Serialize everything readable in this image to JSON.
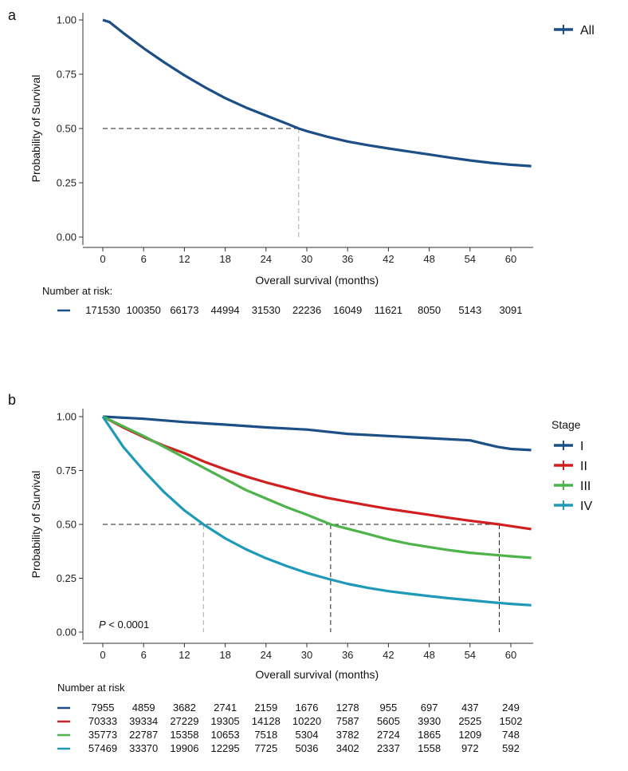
{
  "chart_data": [
    {
      "panel_label": "a",
      "type": "line",
      "subtype": "kaplan-meier",
      "title": "",
      "xlabel": "Overall survival (months)",
      "ylabel": "Probability of Survival",
      "xlim": [
        0,
        63
      ],
      "ylim": [
        0,
        1
      ],
      "xticks": [
        0,
        6,
        12,
        18,
        24,
        30,
        36,
        42,
        48,
        54,
        60
      ],
      "yticks": [
        "0.00",
        "0.25",
        "0.50",
        "0.75",
        "1.00"
      ],
      "grid": false,
      "legend": {
        "title": "",
        "position": "top-right"
      },
      "median_reference": {
        "y": 0.5,
        "x": [
          28.8
        ]
      },
      "series": [
        {
          "name": "All",
          "color": "#1b4f86",
          "x": [
            0,
            1,
            3,
            6,
            9,
            12,
            15,
            18,
            21,
            24,
            27,
            28.8,
            30,
            33,
            36,
            39,
            42,
            45,
            48,
            51,
            54,
            57,
            60,
            63
          ],
          "y": [
            1.0,
            0.99,
            0.94,
            0.87,
            0.805,
            0.745,
            0.69,
            0.64,
            0.597,
            0.56,
            0.523,
            0.5,
            0.488,
            0.462,
            0.44,
            0.423,
            0.408,
            0.394,
            0.38,
            0.366,
            0.353,
            0.342,
            0.333,
            0.327
          ]
        }
      ],
      "risk_table": {
        "title": "Number at risk:",
        "rows": [
          {
            "color": "#1b4f86",
            "values": [
              "171530",
              "100350",
              "66173",
              "44994",
              "31530",
              "22236",
              "16049",
              "11621",
              "8050",
              "5143",
              "3091"
            ]
          }
        ]
      }
    },
    {
      "panel_label": "b",
      "type": "line",
      "subtype": "kaplan-meier",
      "title": "",
      "xlabel": "Overall survival (months)",
      "ylabel": "Probability of Survival",
      "xlim": [
        0,
        63
      ],
      "ylim": [
        0,
        1
      ],
      "xticks": [
        0,
        6,
        12,
        18,
        24,
        30,
        36,
        42,
        48,
        54,
        60
      ],
      "yticks": [
        "0.00",
        "0.25",
        "0.50",
        "0.75",
        "1.00"
      ],
      "grid": false,
      "legend": {
        "title": "Stage",
        "position": "right"
      },
      "annotation": {
        "p_label": "P",
        "p_rest": " < 0.0001"
      },
      "median_reference": {
        "y": 0.5,
        "x": [
          14.8,
          33.5,
          58.3
        ]
      },
      "series": [
        {
          "name": "I",
          "color": "#1b4f86",
          "x": [
            0,
            6,
            12,
            18,
            24,
            30,
            36,
            42,
            48,
            54,
            56,
            58,
            60,
            63
          ],
          "y": [
            1.0,
            0.99,
            0.975,
            0.963,
            0.95,
            0.94,
            0.92,
            0.91,
            0.9,
            0.89,
            0.875,
            0.86,
            0.85,
            0.845
          ]
        },
        {
          "name": "II",
          "color": "#d11f1f",
          "x": [
            0,
            3,
            6,
            9,
            12,
            15,
            18,
            21,
            24,
            27,
            30,
            33,
            36,
            39,
            42,
            45,
            48,
            51,
            54,
            57,
            58.3,
            60,
            63
          ],
          "y": [
            1.0,
            0.95,
            0.905,
            0.865,
            0.83,
            0.79,
            0.755,
            0.723,
            0.695,
            0.67,
            0.645,
            0.623,
            0.605,
            0.588,
            0.572,
            0.558,
            0.544,
            0.53,
            0.517,
            0.505,
            0.5,
            0.492,
            0.478
          ]
        },
        {
          "name": "III",
          "color": "#4db34a",
          "x": [
            0,
            3,
            6,
            9,
            12,
            15,
            18,
            21,
            24,
            27,
            30,
            33.5,
            36,
            39,
            42,
            45,
            48,
            51,
            54,
            57,
            60,
            63
          ],
          "y": [
            1.0,
            0.955,
            0.91,
            0.86,
            0.81,
            0.76,
            0.71,
            0.66,
            0.62,
            0.58,
            0.545,
            0.5,
            0.48,
            0.455,
            0.43,
            0.41,
            0.395,
            0.38,
            0.368,
            0.36,
            0.352,
            0.345
          ]
        },
        {
          "name": "IV",
          "color": "#1e9ab8",
          "x": [
            0,
            1.5,
            3,
            6,
            9,
            12,
            14.8,
            18,
            21,
            24,
            27,
            30,
            33,
            36,
            39,
            42,
            45,
            48,
            51,
            54,
            57,
            60,
            63
          ],
          "y": [
            1.0,
            0.93,
            0.86,
            0.75,
            0.65,
            0.565,
            0.5,
            0.435,
            0.385,
            0.343,
            0.307,
            0.275,
            0.248,
            0.224,
            0.205,
            0.19,
            0.178,
            0.167,
            0.157,
            0.148,
            0.139,
            0.131,
            0.125
          ]
        }
      ],
      "risk_table": {
        "title": "Number at risk",
        "rows": [
          {
            "color": "#1b4f86",
            "values": [
              "7955",
              "4859",
              "3682",
              "2741",
              "2159",
              "1676",
              "1278",
              "955",
              "697",
              "437",
              "249"
            ]
          },
          {
            "color": "#d11f1f",
            "values": [
              "70333",
              "39334",
              "27229",
              "19305",
              "14128",
              "10220",
              "7587",
              "5605",
              "3930",
              "2525",
              "1502"
            ]
          },
          {
            "color": "#4db34a",
            "values": [
              "35773",
              "22787",
              "15358",
              "10653",
              "7518",
              "5304",
              "3782",
              "2724",
              "1865",
              "1209",
              "748"
            ]
          },
          {
            "color": "#1e9ab8",
            "values": [
              "57469",
              "33370",
              "19906",
              "12295",
              "7725",
              "5036",
              "3402",
              "2337",
              "1558",
              "972",
              "592"
            ]
          }
        ]
      }
    }
  ]
}
